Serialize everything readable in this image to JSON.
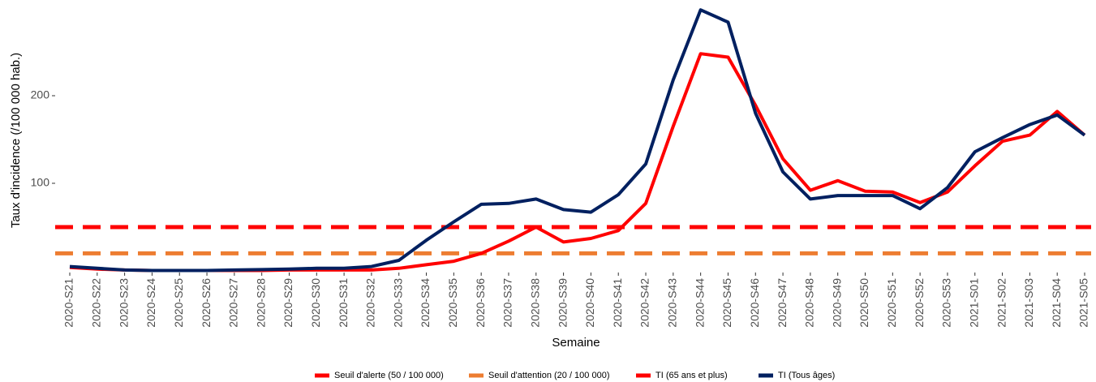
{
  "chart_data": {
    "type": "line",
    "xlabel": "Semaine",
    "ylabel": "Taux d'incidence (/100 000 hab.)",
    "categories": [
      "2020-S21",
      "2020-S22",
      "2020-S23",
      "2020-S24",
      "2020-S25",
      "2020-S26",
      "2020-S27",
      "2020-S28",
      "2020-S29",
      "2020-S30",
      "2020-S31",
      "2020-S32",
      "2020-S33",
      "2020-S34",
      "2020-S35",
      "2020-S36",
      "2020-S37",
      "2020-S38",
      "2020-S39",
      "2020-S40",
      "2020-S41",
      "2020-S42",
      "2020-S43",
      "2020-S44",
      "2020-S45",
      "2020-S46",
      "2020-S47",
      "2020-S48",
      "2020-S49",
      "2020-S50",
      "2020-S51",
      "2020-S52",
      "2020-S53",
      "2021-S01",
      "2021-S02",
      "2021-S03",
      "2021-S04",
      "2021-S05"
    ],
    "thresholds": [
      {
        "name": "Seuil d'alerte (50 / 100 000)",
        "color": "#ff0000",
        "value": 50
      },
      {
        "name": "Seuil d'attention (20 / 100 000)",
        "color": "#ed7d31",
        "value": 20
      }
    ],
    "series": [
      {
        "name": "TI (65 ans et plus)",
        "color": "#ff0000",
        "values": [
          4,
          2,
          1,
          0.5,
          0.5,
          0.5,
          0.5,
          0.5,
          1,
          1,
          1,
          1,
          3,
          7,
          11,
          20,
          34,
          50,
          33,
          37,
          46,
          77,
          165,
          248,
          244,
          189,
          128,
          92,
          103,
          91,
          90,
          78,
          90,
          120,
          148,
          155,
          182,
          155
        ]
      },
      {
        "name": "TI (Tous âges)",
        "color": "#002060",
        "values": [
          5,
          3,
          1,
          0.5,
          0.5,
          0.5,
          1,
          1.5,
          2,
          3,
          3,
          5,
          12,
          35,
          56,
          76,
          77,
          82,
          70,
          67,
          87,
          122,
          218,
          298,
          284,
          180,
          113,
          82,
          86,
          86,
          86,
          71,
          95,
          136,
          152,
          167,
          178,
          155
        ]
      }
    ],
    "ylim": [
      0,
      300
    ],
    "yticks": [
      100,
      200
    ]
  }
}
